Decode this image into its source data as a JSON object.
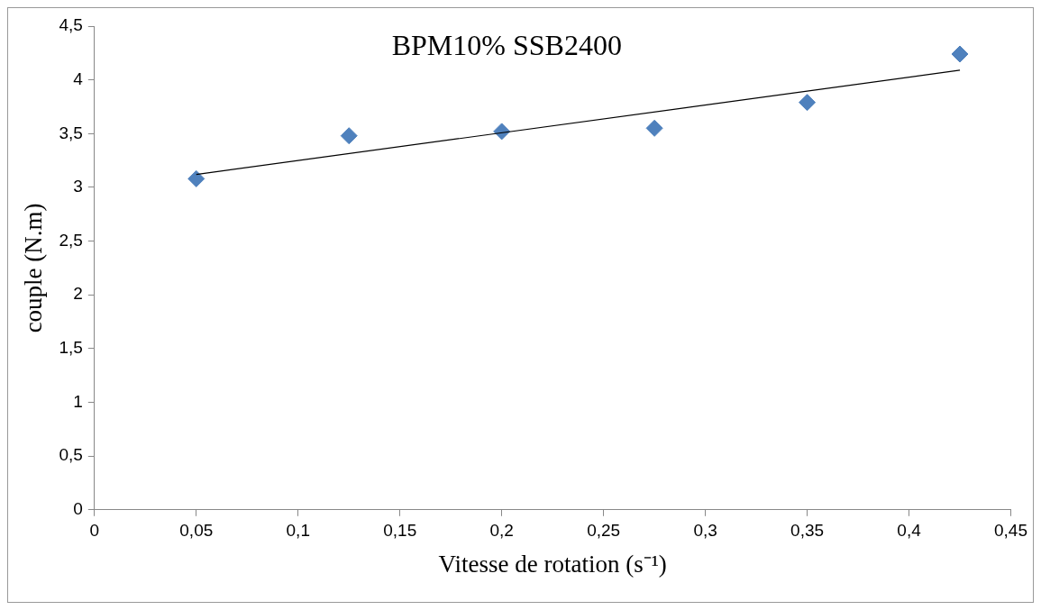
{
  "chart_data": {
    "type": "scatter",
    "title": "BPM10% SSB2400",
    "xlabel": "Vitesse de rotation (s⁻¹)",
    "ylabel": "couple (N.m)",
    "x": [
      0.05,
      0.125,
      0.2,
      0.275,
      0.35,
      0.425
    ],
    "series": [
      {
        "type": "scatter",
        "color": "#4f81bd",
        "marker": "diamond",
        "values": [
          3.08,
          3.48,
          3.52,
          3.55,
          3.79,
          4.24
        ]
      },
      {
        "type": "line",
        "color": "#000000",
        "marker": "none",
        "line_style": "solid",
        "x": [
          0.05,
          0.425
        ],
        "values": [
          3.12,
          4.09
        ]
      }
    ],
    "xlim": [
      0,
      0.45
    ],
    "xticks": [
      0,
      {
        "value": 0.05,
        "label": "0,05"
      },
      {
        "value": 0.1,
        "label": "0,1"
      },
      {
        "value": 0.15,
        "label": "0,15"
      },
      {
        "value": 0.2,
        "label": "0,2"
      },
      {
        "value": 0.25,
        "label": "0,25"
      },
      {
        "value": 0.3,
        "label": "0,3"
      },
      {
        "value": 0.35,
        "label": "0,35"
      },
      {
        "value": 0.4,
        "label": "0,4"
      },
      {
        "value": 0.45,
        "label": "0,45"
      }
    ],
    "ylim": [
      0,
      4.5
    ],
    "yticks": [
      0,
      {
        "value": 0.5,
        "label": "0,5"
      },
      1,
      {
        "value": 1.5,
        "label": "1,5"
      },
      2,
      {
        "value": 2.5,
        "label": "2,5"
      },
      3,
      {
        "value": 3.5,
        "label": "3,5"
      },
      4,
      {
        "value": 4.5,
        "label": "4,5"
      }
    ],
    "grid": false,
    "legend": false
  }
}
